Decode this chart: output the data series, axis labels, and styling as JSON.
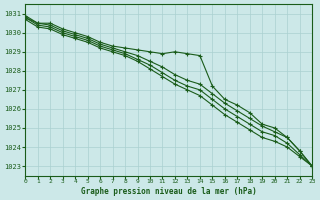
{
  "title": "Graphe pression niveau de la mer (hPa)",
  "xlim": [
    0,
    23
  ],
  "ylim": [
    1022.5,
    1031.5
  ],
  "yticks": [
    1023,
    1024,
    1025,
    1026,
    1027,
    1028,
    1029,
    1030,
    1031
  ],
  "xticks": [
    0,
    1,
    2,
    3,
    4,
    5,
    6,
    7,
    8,
    9,
    10,
    11,
    12,
    13,
    14,
    15,
    16,
    17,
    18,
    19,
    20,
    21,
    22,
    23
  ],
  "bg_color": "#cce8e8",
  "grid_color": "#aad0d0",
  "line_color": "#1a5c1a",
  "series": [
    [
      1030.9,
      1030.5,
      1030.5,
      1030.2,
      1030.0,
      1029.8,
      1029.5,
      1029.3,
      1029.2,
      1029.1,
      1029.0,
      1028.9,
      1029.0,
      1028.9,
      1028.8,
      1027.2,
      1026.5,
      1026.2,
      1025.8,
      1025.2,
      1025.0,
      1024.5,
      1023.8,
      1023.0
    ],
    [
      1030.8,
      1030.5,
      1030.4,
      1030.1,
      1029.9,
      1029.7,
      1029.4,
      1029.2,
      1029.0,
      1028.8,
      1028.5,
      1028.2,
      1027.8,
      1027.5,
      1027.3,
      1026.8,
      1026.3,
      1025.9,
      1025.5,
      1025.1,
      1024.8,
      1024.5,
      1023.8,
      1023.0
    ],
    [
      1030.8,
      1030.4,
      1030.3,
      1030.0,
      1029.8,
      1029.6,
      1029.3,
      1029.1,
      1028.9,
      1028.6,
      1028.3,
      1027.9,
      1027.5,
      1027.2,
      1027.0,
      1026.5,
      1026.0,
      1025.6,
      1025.2,
      1024.8,
      1024.6,
      1024.2,
      1023.6,
      1023.0
    ],
    [
      1030.7,
      1030.3,
      1030.2,
      1029.9,
      1029.7,
      1029.5,
      1029.2,
      1029.0,
      1028.8,
      1028.5,
      1028.1,
      1027.7,
      1027.3,
      1027.0,
      1026.7,
      1026.2,
      1025.7,
      1025.3,
      1024.9,
      1024.5,
      1024.3,
      1024.0,
      1023.5,
      1023.0
    ]
  ]
}
